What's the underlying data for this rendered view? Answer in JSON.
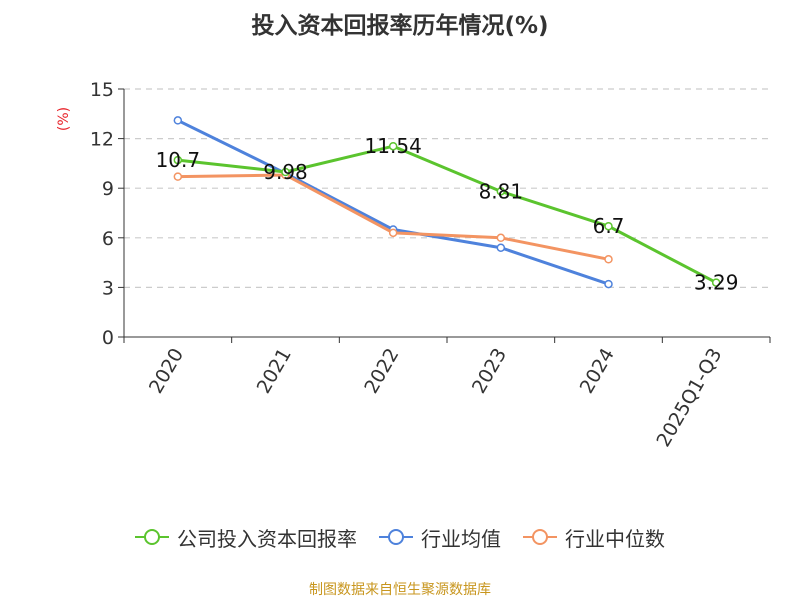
{
  "title": "投入资本回报率历年情况(%)",
  "unit_label": "(%)",
  "source_note": "制图数据来自恒生聚源数据库",
  "colors": {
    "company": "#5bc42e",
    "industry_avg": "#4e82dc",
    "industry_median": "#f39462",
    "grid": "#cccccc",
    "axis": "#333333",
    "unit": "#e8242b",
    "source": "#c8961e"
  },
  "chart_data": {
    "type": "line",
    "title": "投入资本回报率历年情况(%)",
    "ylabel": "(%)",
    "xlabel": "",
    "categories": [
      "2020",
      "2021",
      "2022",
      "2023",
      "2024",
      "2025Q1-Q3"
    ],
    "ylim": [
      0,
      15
    ],
    "yticks": [
      0,
      3,
      6,
      9,
      12,
      15
    ],
    "grid": true,
    "legend_position": "bottom",
    "series": [
      {
        "name": "公司投入资本回报率",
        "color": "#5bc42e",
        "values": [
          10.7,
          9.98,
          11.54,
          8.81,
          6.7,
          3.29
        ],
        "labels": [
          "10.7",
          "9.98",
          "11.54",
          "8.81",
          "6.7",
          "3.29"
        ]
      },
      {
        "name": "行业均值",
        "color": "#4e82dc",
        "values": [
          13.1,
          9.9,
          6.5,
          5.4,
          3.2,
          null
        ]
      },
      {
        "name": "行业中位数",
        "color": "#f39462",
        "values": [
          9.7,
          9.8,
          6.3,
          6.0,
          4.7,
          null
        ]
      }
    ]
  }
}
